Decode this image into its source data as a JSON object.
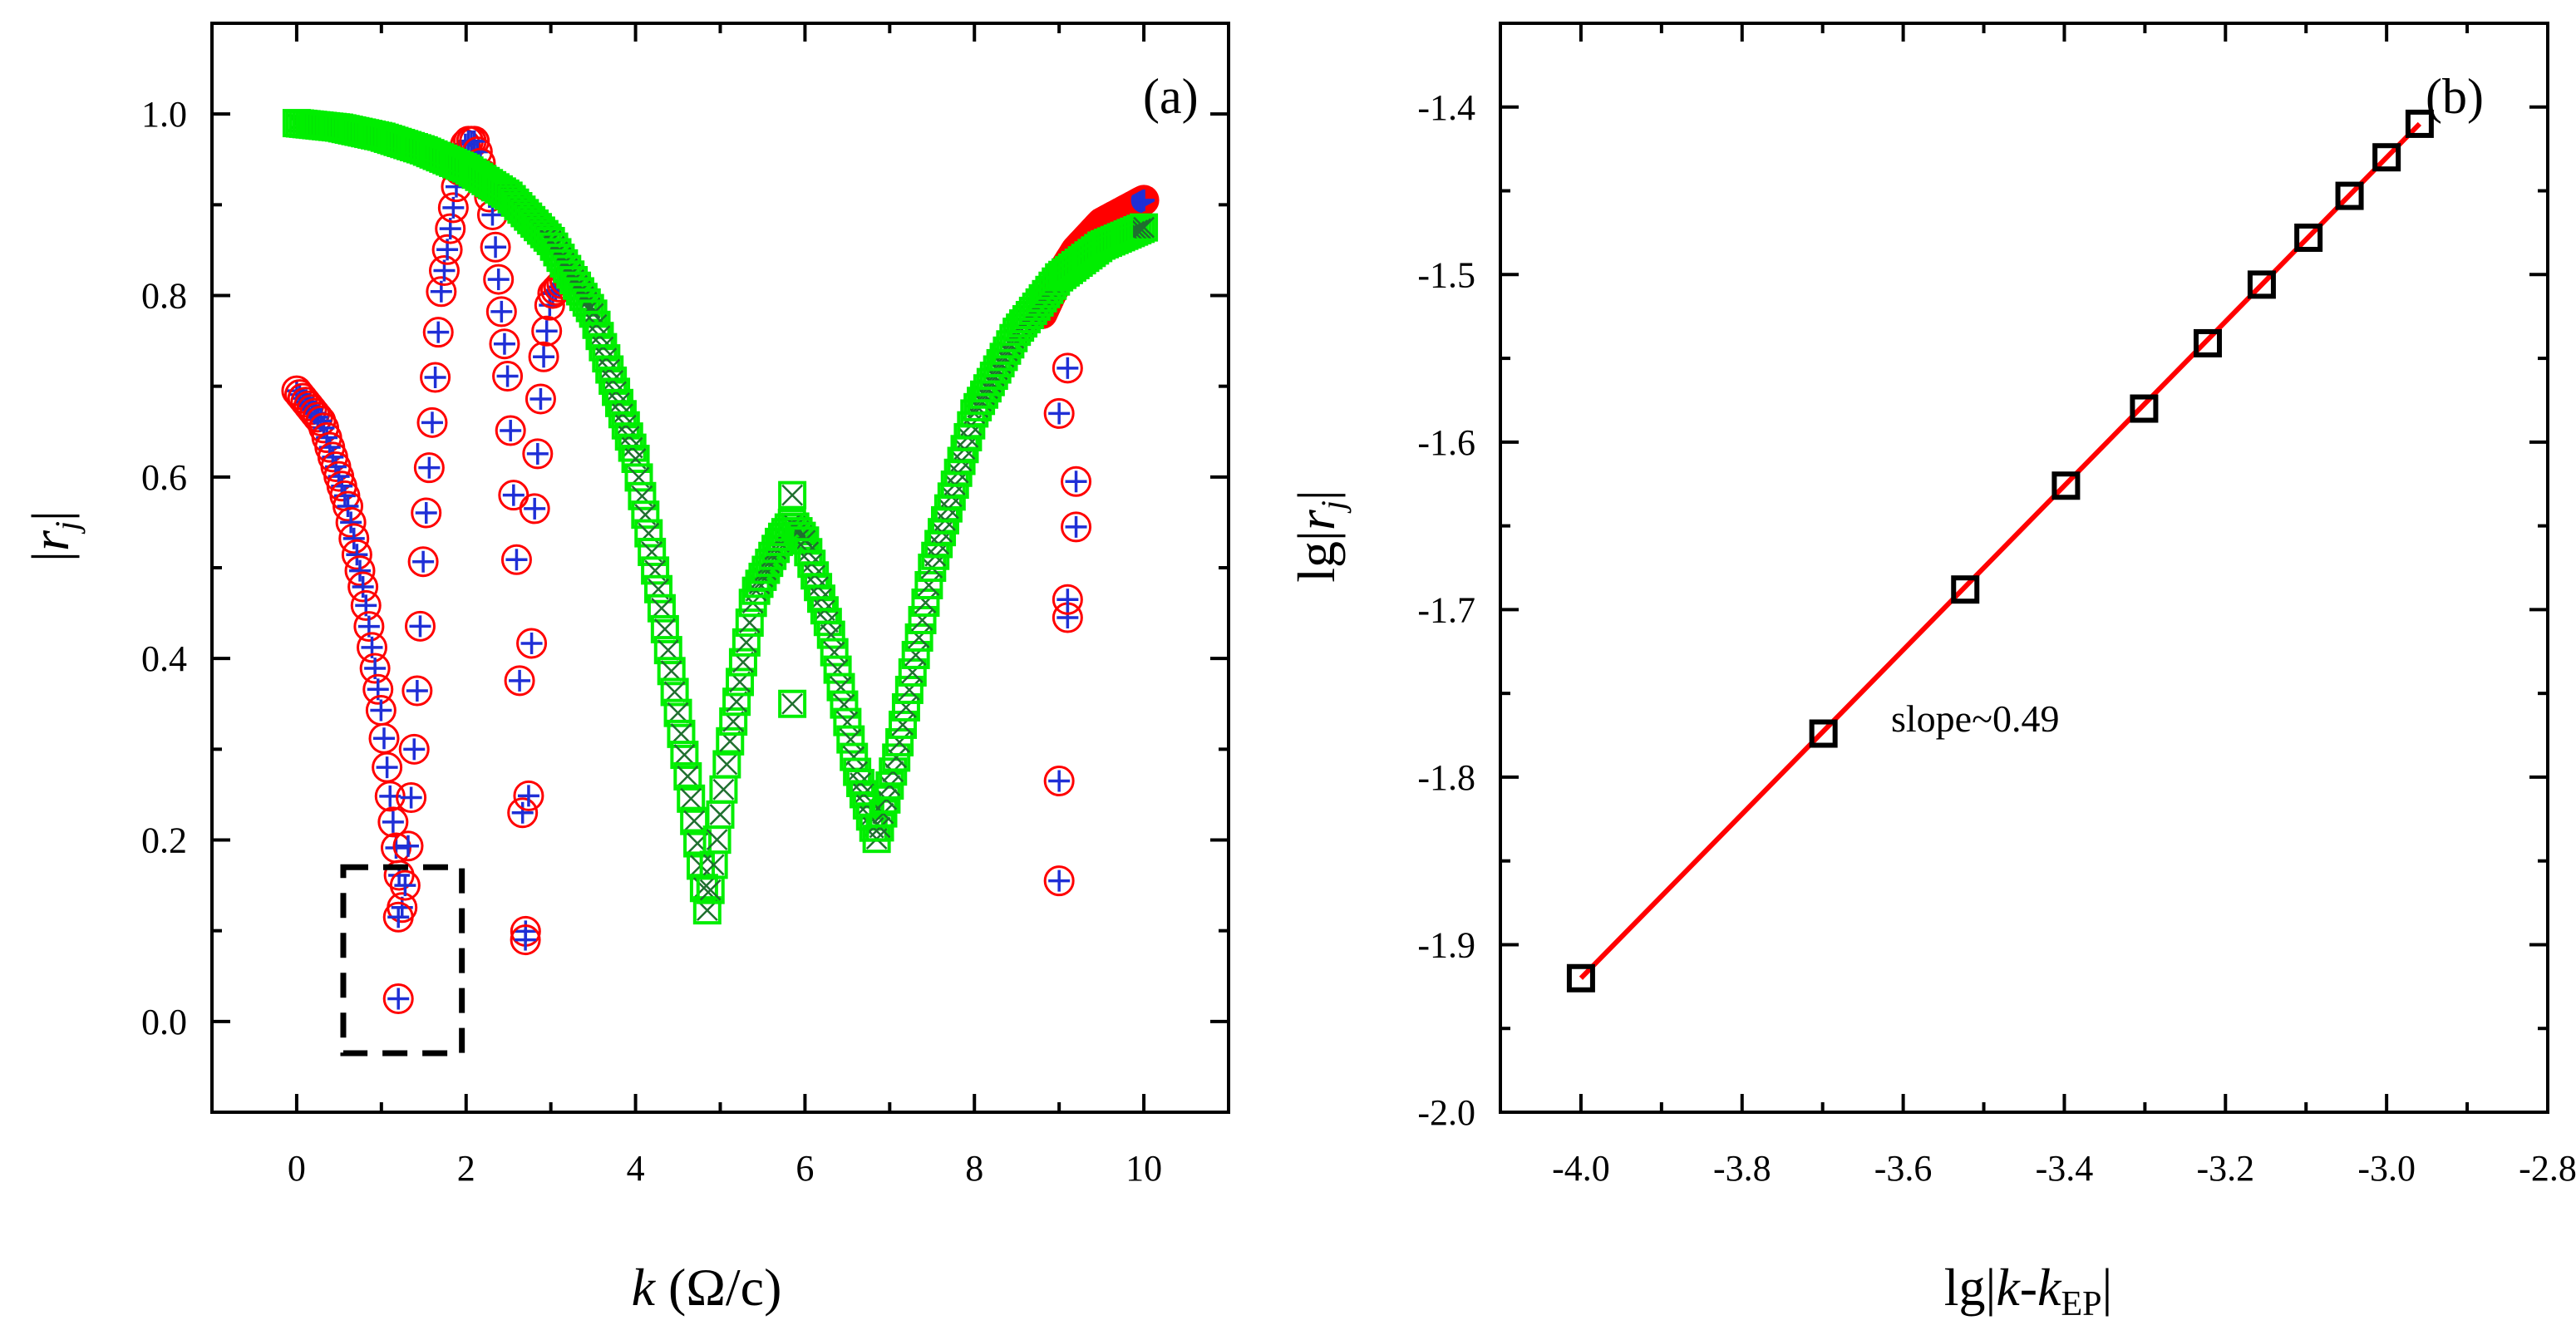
{
  "chart_data": [
    {
      "panel": "(a)",
      "type": "scatter",
      "xlabel_italic": "k",
      "xlabel_rest": " (Ω/c)",
      "ylabel_prefix": "|",
      "ylabel_var": "r",
      "ylabel_sub": "j",
      "ylabel_suffix": "|",
      "xlim": [
        -1,
        11
      ],
      "ylim": [
        -0.1,
        1.1
      ],
      "xticks": [
        0,
        2,
        4,
        6,
        8,
        10
      ],
      "xtick_labels": [
        "0",
        "2",
        "4",
        "6",
        "8",
        "10"
      ],
      "yticks": [
        0.0,
        0.2,
        0.4,
        0.6,
        0.8,
        1.0
      ],
      "ytick_labels": [
        "0.0",
        "0.2",
        "0.4",
        "0.6",
        "0.8",
        "1.0"
      ],
      "highlight_box": {
        "x": [
          0.55,
          1.95
        ],
        "y": [
          -0.035,
          0.17
        ]
      },
      "series": [
        {
          "name": "branch-1",
          "color": "#ff0000",
          "marker": "circle-plus",
          "x": [
            0,
            0.3,
            0.6,
            0.8,
            1.0,
            1.1,
            1.2,
            1.25,
            1.3,
            1.4,
            1.5,
            1.7,
            1.9,
            2.0,
            2.1,
            2.3,
            2.5,
            2.6,
            2.65,
            2.7,
            2.75,
            2.8,
            2.9,
            3.0,
            3.2
          ],
          "values": [
            0.695,
            0.66,
            0.57,
            0.47,
            0.34,
            0.25,
            0.17,
            0.12,
            0.17,
            0.32,
            0.52,
            0.8,
            0.93,
            0.97,
            0.97,
            0.9,
            0.7,
            0.5,
            0.3,
            0.09,
            0.3,
            0.55,
            0.72,
            0.8,
            0.82
          ]
        },
        {
          "name": "branch-1-outliers",
          "color": "#ff0000",
          "marker": "circle-plus",
          "x": [
            1.2,
            1.2,
            2.7,
            9.0,
            9.0,
            9.1,
            9.1,
            9.2,
            9.2,
            9.0,
            9.1
          ],
          "values": [
            0.025,
            0.115,
            0.09,
            0.155,
            0.265,
            0.445,
            0.465,
            0.545,
            0.595,
            0.67,
            0.72
          ]
        },
        {
          "name": "branch-2",
          "color": "#ff0000",
          "marker": "circle-plus",
          "x": [
            8.8,
            9.0,
            9.2,
            9.5,
            10.0
          ],
          "values": [
            0.78,
            0.82,
            0.85,
            0.88,
            0.905
          ]
        },
        {
          "name": "branch-3",
          "color": "#00ee00",
          "marker": "square-cross",
          "x": [
            0,
            0.5,
            1.0,
            1.5,
            2.0,
            2.5,
            3.0,
            3.5,
            4.0,
            4.3,
            4.6,
            4.85,
            5.1,
            5.4,
            5.7,
            5.85,
            6.0,
            6.3,
            6.6,
            6.85,
            7.1,
            7.5,
            8.0,
            8.5,
            9.0,
            9.5,
            10.0
          ],
          "values": [
            0.99,
            0.985,
            0.975,
            0.96,
            0.94,
            0.91,
            0.86,
            0.78,
            0.62,
            0.46,
            0.28,
            0.12,
            0.3,
            0.47,
            0.53,
            0.55,
            0.53,
            0.43,
            0.28,
            0.2,
            0.3,
            0.5,
            0.67,
            0.76,
            0.82,
            0.855,
            0.875
          ]
        },
        {
          "name": "branch-3-outliers",
          "color": "#00ee00",
          "marker": "square-cross",
          "x": [
            5.85,
            5.85
          ],
          "values": [
            0.58,
            0.35
          ]
        }
      ]
    },
    {
      "panel": "(b)",
      "type": "scatter",
      "xlabel_prefix": "lg|",
      "xlabel_var": "k",
      "xlabel_mid": "-",
      "xlabel_var2": "k",
      "xlabel_sub": "EP",
      "xlabel_suffix": "|",
      "ylabel_prefix": "lg|",
      "ylabel_var": "r",
      "ylabel_sub": "j",
      "ylabel_suffix": "|",
      "xlim": [
        -4.1,
        -2.8
      ],
      "ylim": [
        -2.0,
        -1.35
      ],
      "xticks": [
        -4.0,
        -3.8,
        -3.6,
        -3.4,
        -3.2,
        -3.0,
        -2.8
      ],
      "xtick_labels": [
        "-4.0",
        "-3.8",
        "-3.6",
        "-3.4",
        "-3.2",
        "-3.0",
        "-2.8"
      ],
      "yticks": [
        -2.0,
        -1.9,
        -1.8,
        -1.7,
        -1.6,
        -1.5,
        -1.4
      ],
      "ytick_labels": [
        "-2.0",
        "-1.9",
        "-1.8",
        "-1.7",
        "-1.6",
        "-1.5",
        "-1.4"
      ],
      "annotation": "slope~0.49",
      "series": [
        {
          "name": "data",
          "color": "#000000",
          "marker": "square",
          "x": [
            -4.0,
            -3.699,
            -3.523,
            -3.398,
            -3.301,
            -3.222,
            -3.155,
            -3.097,
            -3.046,
            -3.0,
            -2.959
          ],
          "values": [
            -1.92,
            -1.774,
            -1.688,
            -1.626,
            -1.58,
            -1.541,
            -1.506,
            -1.478,
            -1.453,
            -1.43,
            -1.41
          ]
        },
        {
          "name": "fit",
          "color": "#ff0000",
          "marker": "line",
          "x": [
            -4.0,
            -2.959
          ],
          "values": [
            -1.92,
            -1.41
          ]
        }
      ]
    }
  ]
}
